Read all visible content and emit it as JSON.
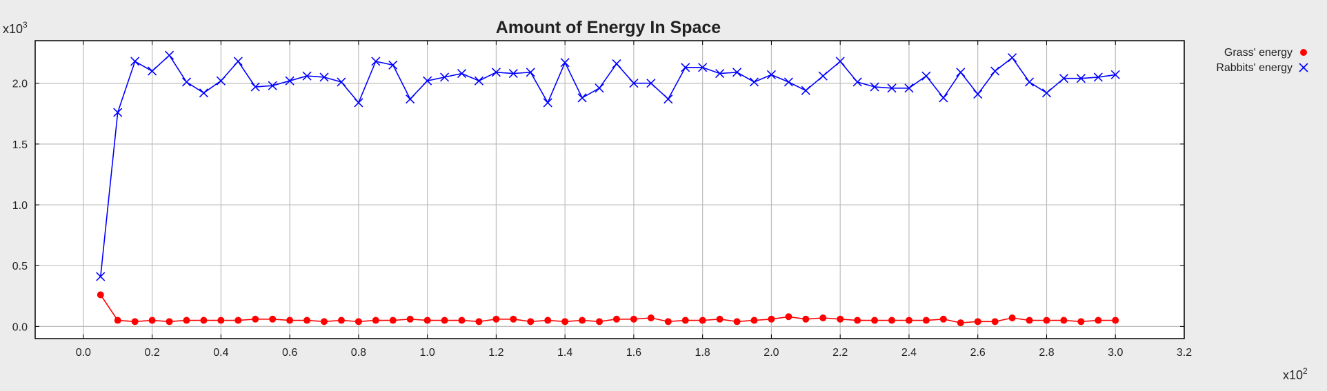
{
  "chart_data": {
    "type": "line",
    "title": "Amount of Energy In Space",
    "x_multiplier": {
      "base": "x10",
      "exp": "2"
    },
    "y_multiplier": {
      "base": "x10",
      "exp": "3"
    },
    "xlim": [
      -0.14,
      3.2
    ],
    "ylim": [
      -0.1,
      2.35
    ],
    "x_ticks": [
      "0.0",
      "0.2",
      "0.4",
      "0.6",
      "0.8",
      "1.0",
      "1.2",
      "1.4",
      "1.6",
      "1.8",
      "2.0",
      "2.2",
      "2.4",
      "2.6",
      "2.8",
      "3.0",
      "3.2"
    ],
    "y_ticks": [
      "0.0",
      "0.5",
      "1.0",
      "1.5",
      "2.0"
    ],
    "grid": true,
    "legend_position": "outside-top-right",
    "x": [
      0.05,
      0.1,
      0.15,
      0.2,
      0.25,
      0.3,
      0.35,
      0.4,
      0.45,
      0.5,
      0.55,
      0.6,
      0.65,
      0.7,
      0.75,
      0.8,
      0.85,
      0.9,
      0.95,
      1.0,
      1.05,
      1.1,
      1.15,
      1.2,
      1.25,
      1.3,
      1.35,
      1.4,
      1.45,
      1.5,
      1.55,
      1.6,
      1.65,
      1.7,
      1.75,
      1.8,
      1.85,
      1.9,
      1.95,
      2.0,
      2.05,
      2.1,
      2.15,
      2.2,
      2.25,
      2.3,
      2.35,
      2.4,
      2.45,
      2.5,
      2.55,
      2.6,
      2.65,
      2.7,
      2.75,
      2.8,
      2.85,
      2.9,
      2.95,
      3.0
    ],
    "series": [
      {
        "name": "Grass' energy",
        "marker": "circle",
        "color": "#ff0000",
        "values": [
          0.26,
          0.05,
          0.04,
          0.05,
          0.04,
          0.05,
          0.05,
          0.05,
          0.05,
          0.06,
          0.06,
          0.05,
          0.05,
          0.04,
          0.05,
          0.04,
          0.05,
          0.05,
          0.06,
          0.05,
          0.05,
          0.05,
          0.04,
          0.06,
          0.06,
          0.04,
          0.05,
          0.04,
          0.05,
          0.04,
          0.06,
          0.06,
          0.07,
          0.04,
          0.05,
          0.05,
          0.06,
          0.04,
          0.05,
          0.06,
          0.08,
          0.06,
          0.07,
          0.06,
          0.05,
          0.05,
          0.05,
          0.05,
          0.05,
          0.06,
          0.03,
          0.04,
          0.04,
          0.07,
          0.05,
          0.05,
          0.05,
          0.04,
          0.05,
          0.05
        ]
      },
      {
        "name": "Rabbits' energy",
        "marker": "x",
        "color": "#0000ff",
        "values": [
          0.41,
          1.76,
          2.18,
          2.1,
          2.23,
          2.01,
          1.92,
          2.02,
          2.18,
          1.97,
          1.98,
          2.02,
          2.06,
          2.05,
          2.01,
          1.84,
          2.18,
          2.15,
          1.87,
          2.02,
          2.05,
          2.08,
          2.02,
          2.09,
          2.08,
          2.09,
          1.84,
          2.17,
          1.88,
          1.96,
          2.16,
          2.0,
          2.0,
          1.87,
          2.13,
          2.13,
          2.08,
          2.09,
          2.01,
          2.07,
          2.01,
          1.94,
          2.06,
          2.18,
          2.01,
          1.97,
          1.96,
          1.96,
          2.06,
          1.88,
          2.09,
          1.91,
          2.1,
          2.21,
          2.01,
          1.92,
          2.04,
          2.04,
          2.05,
          2.07
        ]
      }
    ]
  }
}
